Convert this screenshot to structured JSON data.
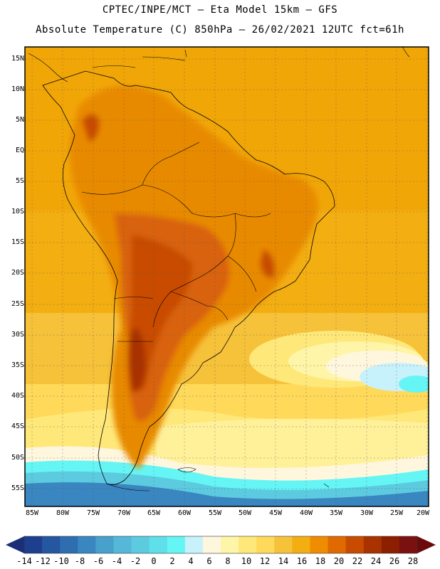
{
  "header": {
    "line1": "CPTEC/INPE/MCT –  Eta Model 15km – GFS",
    "line2": "Absolute Temperature (C) 850hPa – 26/02/2021 12UTC fct=61h"
  },
  "axes": {
    "lat_labels": [
      "15N",
      "10N",
      "5N",
      "EQ",
      "5S",
      "10S",
      "15S",
      "20S",
      "25S",
      "30S",
      "35S",
      "40S",
      "45S",
      "50S",
      "55S"
    ],
    "lon_labels": [
      "85W",
      "80W",
      "75W",
      "70W",
      "65W",
      "60W",
      "55W",
      "50W",
      "45W",
      "40W",
      "35W",
      "30W",
      "25W",
      "20W"
    ]
  },
  "colorbar": {
    "labels": [
      "-14",
      "-12",
      "-10",
      "-8",
      "-6",
      "-4",
      "-2",
      "0",
      "2",
      "4",
      "6",
      "8",
      "10",
      "12",
      "14",
      "16",
      "18",
      "20",
      "22",
      "24",
      "26",
      "28"
    ],
    "colors": [
      "#1e3f8f",
      "#2556a0",
      "#2e6eb0",
      "#3a86c0",
      "#48a0cc",
      "#55b8d8",
      "#5ccbe0",
      "#5fdfea",
      "#66f5f5",
      "#c8f2fb",
      "#fff6de",
      "#fff5a8",
      "#ffe87a",
      "#ffd95a",
      "#f6c23a",
      "#f3ae12",
      "#f08c00",
      "#e06a00",
      "#c84c00",
      "#a83200",
      "#8c1f00",
      "#7a1010"
    ],
    "underflow_color": "#1b2f78",
    "overflow_color": "#6a0a0a"
  }
}
